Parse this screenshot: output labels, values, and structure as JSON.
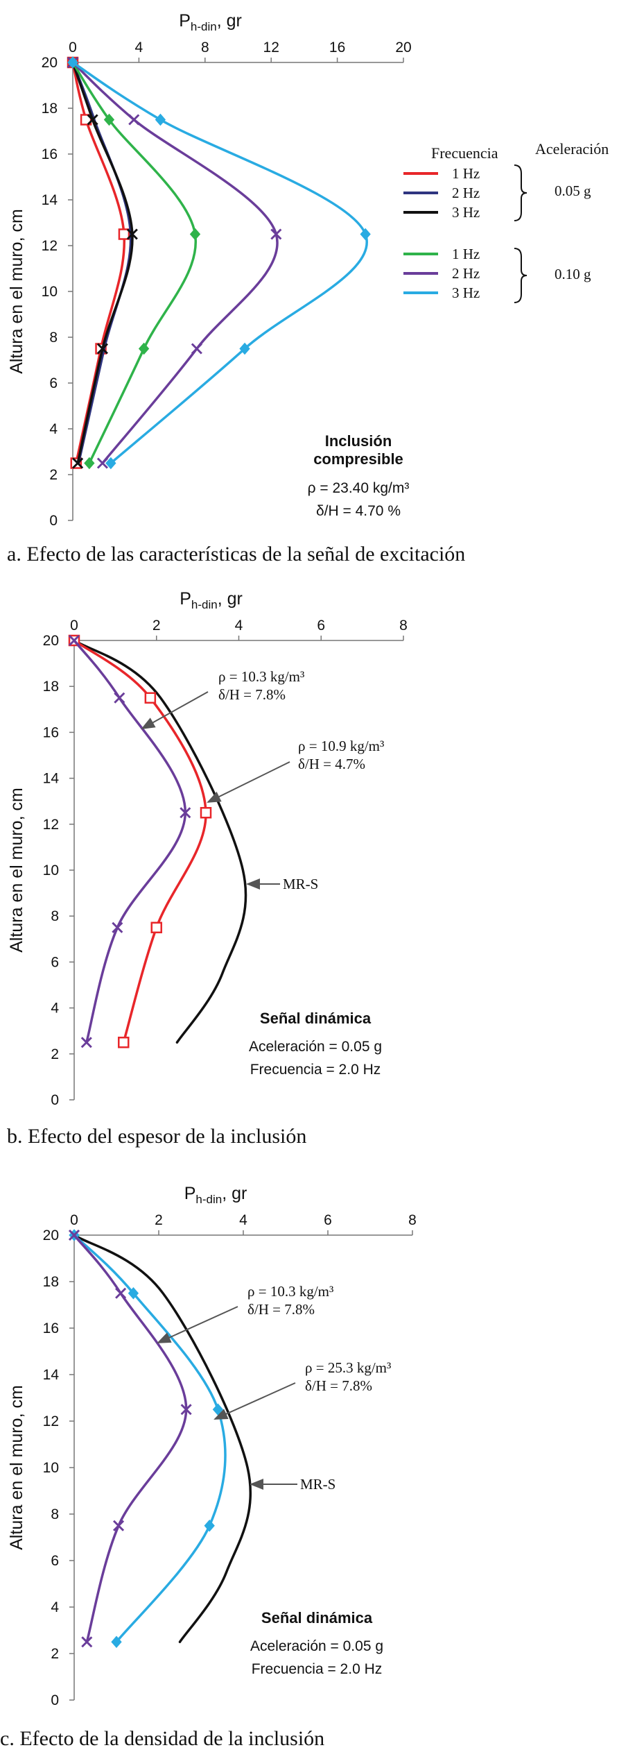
{
  "chart_data": [
    {
      "type": "line",
      "caption": "a. Efecto de las características de la señal de excitación",
      "xlabel": "P",
      "xlabel_sub": "h-din",
      "xlabel_unit": ", gr",
      "ylabel": "Altura en el muro, cm",
      "xlim": [
        0,
        20
      ],
      "ylim": [
        0,
        20
      ],
      "xticks": [
        "0",
        "4",
        "8",
        "12",
        "16",
        "20"
      ],
      "yticks": [
        "0",
        "2",
        "4",
        "6",
        "8",
        "10",
        "12",
        "14",
        "16",
        "18",
        "20"
      ],
      "legend": {
        "title_frequency": "Frecuencia",
        "title_acceleration": "Aceleración",
        "group_labels": [
          "0.05 g",
          "0.10 g"
        ]
      },
      "series": [
        {
          "name": "1 Hz",
          "color": "#e8262a",
          "marker": "square",
          "x": [
            0,
            0.8,
            3.1,
            1.7,
            0.2
          ],
          "y": [
            20,
            17.5,
            12.5,
            7.5,
            2.5
          ]
        },
        {
          "name": "2 Hz",
          "color": "#2f3580",
          "marker": "none",
          "x": [
            0,
            1.3,
            3.5,
            1.9,
            0.35
          ],
          "y": [
            20,
            17.5,
            12.5,
            7.5,
            2.5
          ]
        },
        {
          "name": "3 Hz",
          "color": "#111111",
          "marker": "x",
          "x": [
            0,
            1.2,
            3.6,
            1.8,
            0.3
          ],
          "y": [
            20,
            17.5,
            12.5,
            7.5,
            2.5
          ]
        },
        {
          "name": "1 Hz",
          "color": "#2fb34a",
          "marker": "diamond",
          "x": [
            0,
            2.2,
            7.4,
            4.3,
            1.0
          ],
          "y": [
            20,
            17.5,
            12.5,
            7.5,
            2.5
          ]
        },
        {
          "name": "2 Hz",
          "color": "#6a3d9a",
          "marker": "x",
          "x": [
            0,
            3.7,
            12.3,
            7.5,
            1.8
          ],
          "y": [
            20,
            17.5,
            12.5,
            7.5,
            2.5
          ]
        },
        {
          "name": "3 Hz",
          "color": "#29abe2",
          "marker": "diamond",
          "x": [
            0,
            5.3,
            17.7,
            10.4,
            2.3
          ],
          "y": [
            20,
            17.5,
            12.5,
            7.5,
            2.5
          ]
        }
      ],
      "annotations": [
        {
          "kind": "bold",
          "lines": [
            "Inclusión",
            "compresible"
          ]
        },
        {
          "kind": "text",
          "lines": [
            "ρ = 23.40 kg/m³",
            "δ/H = 4.70 %"
          ]
        }
      ]
    },
    {
      "type": "line",
      "caption": "b. Efecto del espesor de la inclusión",
      "xlabel": "P",
      "xlabel_sub": "h-din",
      "xlabel_unit": ", gr",
      "ylabel": "Altura en el muro, cm",
      "xlim": [
        0,
        8
      ],
      "ylim": [
        0,
        20
      ],
      "xticks": [
        "0",
        "2",
        "4",
        "6",
        "8"
      ],
      "yticks": [
        "0",
        "2",
        "4",
        "6",
        "8",
        "10",
        "12",
        "14",
        "16",
        "18",
        "20"
      ],
      "series": [
        {
          "name": "MR-S",
          "color": "#111111",
          "marker": "none",
          "x": [
            0,
            2.1,
            4.1,
            3.6,
            2.5
          ],
          "y": [
            20,
            17.5,
            10.0,
            5.5,
            2.5
          ]
        },
        {
          "name": "",
          "color": "#e8262a",
          "marker": "square",
          "x": [
            0,
            1.85,
            3.2,
            2.0,
            1.2
          ],
          "y": [
            20,
            17.5,
            12.5,
            7.5,
            2.5
          ]
        },
        {
          "name": "",
          "color": "#6a3d9a",
          "marker": "x",
          "x": [
            0,
            1.1,
            2.7,
            1.05,
            0.3
          ],
          "y": [
            20,
            17.5,
            12.5,
            7.5,
            2.5
          ]
        }
      ],
      "annotations": [
        {
          "kind": "arrow",
          "lines": [
            "ρ = 10.3 kg/m³",
            "δ/H = 7.8%"
          ]
        },
        {
          "kind": "arrow",
          "lines": [
            "ρ = 10.9 kg/m³",
            "δ/H = 4.7%"
          ]
        },
        {
          "kind": "arrow",
          "lines": [
            "MR-S"
          ]
        },
        {
          "kind": "bold",
          "lines": [
            "Señal dinámica"
          ]
        },
        {
          "kind": "text",
          "lines": [
            "Aceleración = 0.05 g",
            "Frecuencia = 2.0 Hz"
          ]
        }
      ]
    },
    {
      "type": "line",
      "caption": "c. Efecto de la densidad de la inclusión",
      "xlabel": "P",
      "xlabel_sub": "h-din",
      "xlabel_unit": ", gr",
      "ylabel": "Altura en el muro, cm",
      "xlim": [
        0,
        8
      ],
      "ylim": [
        0,
        20
      ],
      "xticks": [
        "0",
        "2",
        "4",
        "6",
        "8"
      ],
      "yticks": [
        "0",
        "2",
        "4",
        "6",
        "8",
        "10",
        "12",
        "14",
        "16",
        "18",
        "20"
      ],
      "series": [
        {
          "name": "MR-S",
          "color": "#111111",
          "marker": "none",
          "x": [
            0,
            2.1,
            4.1,
            3.6,
            2.5
          ],
          "y": [
            20,
            17.5,
            10.0,
            5.5,
            2.5
          ]
        },
        {
          "name": "",
          "color": "#29abe2",
          "marker": "diamond",
          "x": [
            0,
            1.4,
            3.4,
            3.2,
            1.0
          ],
          "y": [
            20,
            17.5,
            12.5,
            7.5,
            2.5
          ]
        },
        {
          "name": "",
          "color": "#6a3d9a",
          "marker": "x",
          "x": [
            0,
            1.1,
            2.65,
            1.05,
            0.3
          ],
          "y": [
            20,
            17.5,
            12.5,
            7.5,
            2.5
          ]
        }
      ],
      "annotations": [
        {
          "kind": "arrow",
          "lines": [
            "ρ = 10.3 kg/m³",
            "δ/H = 7.8%"
          ]
        },
        {
          "kind": "arrow",
          "lines": [
            "ρ = 25.3 kg/m³",
            "δ/H = 7.8%"
          ]
        },
        {
          "kind": "arrow",
          "lines": [
            "MR-S"
          ]
        },
        {
          "kind": "bold",
          "lines": [
            "Señal dinámica"
          ]
        },
        {
          "kind": "text",
          "lines": [
            "Aceleración = 0.05 g",
            "Frecuencia = 2.0 Hz"
          ]
        }
      ]
    }
  ]
}
